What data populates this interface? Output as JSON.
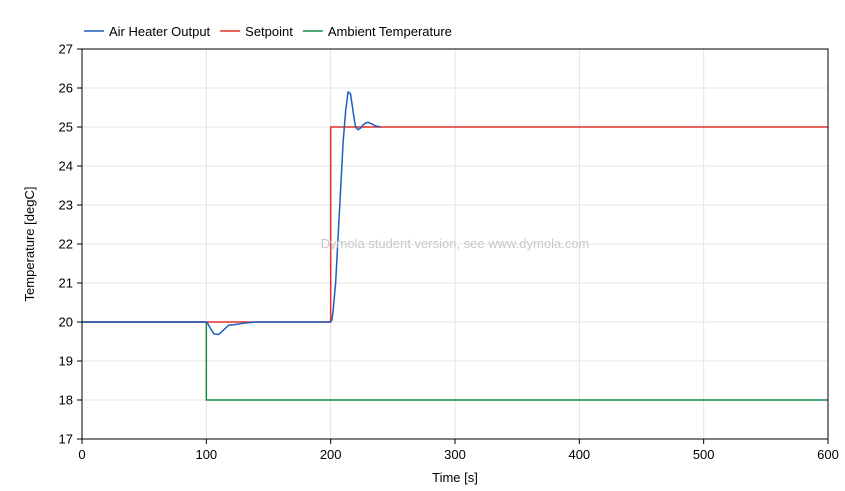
{
  "watermark": "Dymola student version, see www.dymola.com",
  "chart_data": {
    "type": "line",
    "title": "",
    "xlabel": "Time [s]",
    "ylabel": "Temperature [degC]",
    "xlim": [
      0,
      600
    ],
    "ylim": [
      17,
      27
    ],
    "x_ticks": [
      0,
      100,
      200,
      300,
      400,
      500,
      600
    ],
    "y_ticks": [
      17,
      18,
      19,
      20,
      21,
      22,
      23,
      24,
      25,
      26,
      27
    ],
    "grid": true,
    "legend_position": "top",
    "series": [
      {
        "name": "Air Heater Output",
        "color": "#1f5fbf",
        "x": [
          0,
          100,
          101,
          103,
          106,
          110,
          114,
          118,
          122,
          126,
          130,
          140,
          150,
          160,
          200,
          201,
          202,
          204,
          206,
          208,
          210,
          212,
          214,
          216,
          218,
          220,
          222,
          224,
          226,
          228,
          230,
          233,
          236,
          240
        ],
        "y": [
          20,
          20,
          19.97,
          19.85,
          19.7,
          19.68,
          19.8,
          19.92,
          19.93,
          19.95,
          19.97,
          20,
          20,
          20,
          20,
          20.05,
          20.3,
          21,
          22.2,
          23.4,
          24.6,
          25.4,
          25.9,
          25.85,
          25.4,
          25.0,
          24.93,
          24.97,
          25.05,
          25.1,
          25.12,
          25.08,
          25.03,
          25.0
        ]
      },
      {
        "name": "Setpoint",
        "color": "#e0302a",
        "x": [
          0,
          100,
          100,
          200,
          200,
          600
        ],
        "y": [
          20,
          20,
          20,
          20,
          25,
          25
        ]
      },
      {
        "name": "Ambient Temperature",
        "color": "#1a8a4a",
        "x": [
          0,
          100,
          100,
          600
        ],
        "y": [
          20,
          20,
          18,
          18
        ]
      }
    ]
  }
}
